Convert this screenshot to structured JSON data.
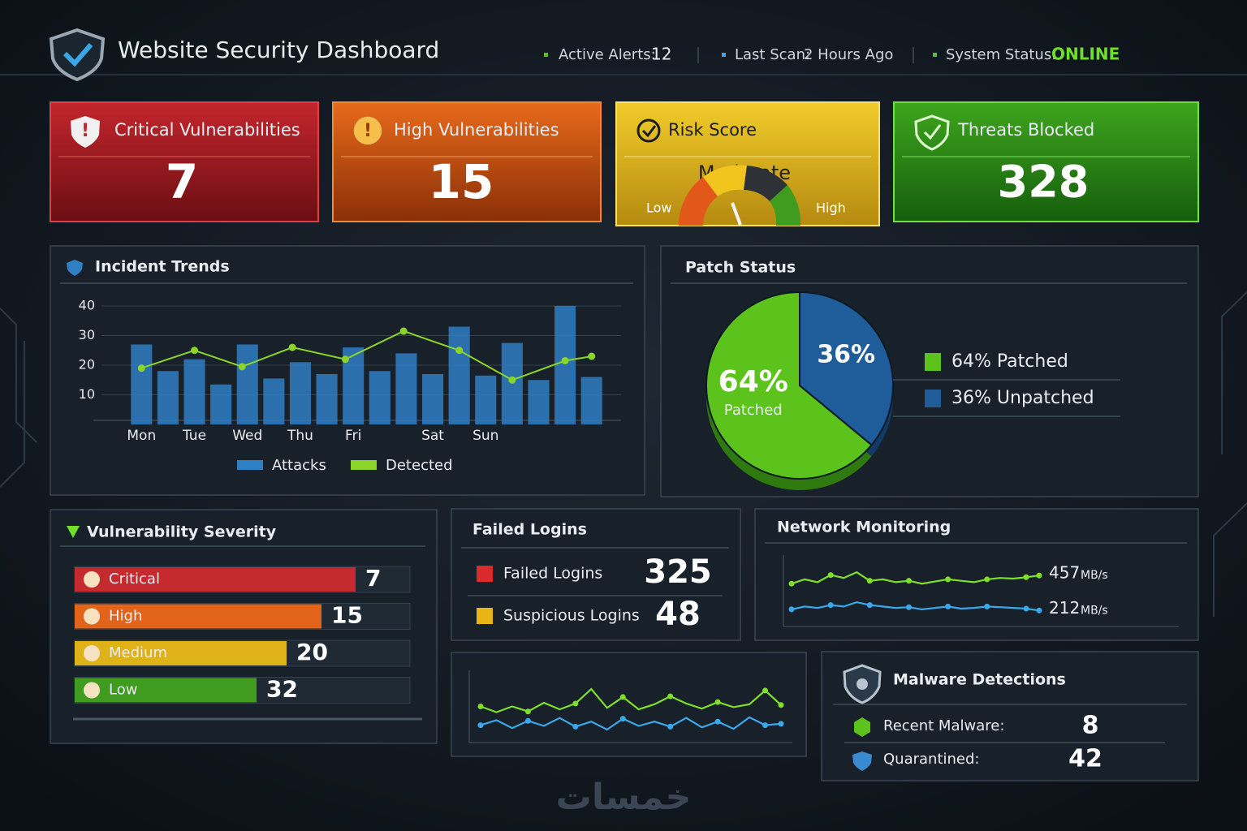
{
  "header": {
    "title": "Website Security Dashboard",
    "alerts_label": "Active Alerts:",
    "alerts_value": 12,
    "scan_label": "Last Scan:",
    "scan_value": "2 Hours Ago",
    "status_label": "System Status:",
    "status_value": "ONLINE"
  },
  "cards": [
    {
      "title": "Critical Vulnerabilities",
      "value": 7
    },
    {
      "title": "High Vulnerabilities",
      "value": 15
    },
    {
      "title": "Threats Blocked",
      "value": 328
    }
  ],
  "risk": {
    "title": "Risk Score",
    "level": "Moderate",
    "low": "Low",
    "high": "High"
  },
  "chart_data": [
    {
      "type": "bar",
      "title": "Incident Trends",
      "categories": [
        "Mon",
        null,
        "Tue",
        null,
        "Wed",
        null,
        "Thu",
        null,
        "Fri",
        null,
        null,
        "Sat",
        null,
        "Sun",
        null,
        null,
        null,
        null
      ],
      "series": [
        {
          "name": "Attacks",
          "color": "#2f7fc4",
          "values": [
            27,
            18,
            22,
            13.5,
            27,
            15.5,
            21,
            17,
            26,
            18,
            24,
            17,
            33,
            16.5,
            27.5,
            15,
            40,
            16
          ]
        },
        {
          "name": "Detected",
          "color": "#8bd42a",
          "x": [
            0,
            2,
            3.8,
            5.7,
            7.7,
            9.9,
            12,
            14,
            16,
            17
          ],
          "values": [
            19,
            25,
            19.5,
            26,
            22,
            31.5,
            25,
            15,
            21.5,
            23
          ]
        }
      ],
      "ylim": [
        0,
        40
      ],
      "yticks": [
        10,
        20,
        30,
        40
      ],
      "grid": true
    },
    {
      "type": "pie",
      "title": "Patch Status",
      "categories": [
        "64% Patched",
        "36% Unpatched"
      ],
      "values": [
        64,
        36
      ],
      "value_labels": [
        "64%",
        "36%"
      ],
      "colors": [
        "#5cc21c",
        "#1f5c9a"
      ],
      "annotation": "Patched"
    },
    {
      "type": "line",
      "title": "Network Monitoring",
      "ylim": [
        100,
        600
      ],
      "series": [
        {
          "color": "#7ee02a",
          "unit": "MB/s",
          "values": [
            400,
            430,
            410,
            460,
            440,
            480,
            420,
            430,
            410,
            420,
            400,
            415,
            430,
            420,
            410,
            430,
            440,
            435,
            445,
            457
          ]
        },
        {
          "color": "#3aa8ec",
          "unit": "MB/s",
          "values": [
            220,
            240,
            230,
            250,
            240,
            270,
            250,
            240,
            230,
            235,
            220,
            230,
            240,
            225,
            230,
            240,
            235,
            230,
            225,
            212
          ]
        }
      ]
    },
    {
      "type": "line",
      "ylim": [
        0,
        10
      ],
      "series": [
        {
          "color": "#7ee02a",
          "values": [
            5,
            4.2,
            5,
            4.3,
            5.5,
            4.6,
            5.4,
            7.4,
            4.8,
            6.3,
            4.6,
            5.3,
            6.4,
            5.4,
            4.7,
            5.6,
            4.9,
            5.3,
            7.2,
            5.2
          ]
        },
        {
          "color": "#3aa8ec",
          "values": [
            2.4,
            3.1,
            2,
            3,
            2.3,
            3.4,
            2.2,
            2.9,
            1.8,
            3.3,
            2.3,
            2.9,
            2.2,
            3.4,
            2.1,
            2.9,
            1.9,
            3.5,
            2.4,
            2.6
          ]
        }
      ]
    }
  ],
  "severity": {
    "title": "Vulnerability Severity",
    "rows": [
      {
        "label": "Critical",
        "value": 7,
        "color": "#c42a2e"
      },
      {
        "label": "High",
        "value": 15,
        "color": "#e2641b"
      },
      {
        "label": "Medium",
        "value": 20,
        "color": "#e0b21a"
      },
      {
        "label": "Low",
        "value": 32,
        "color": "#3f9c1f"
      }
    ]
  },
  "failed_logins": {
    "title": "Failed Logins",
    "rows": [
      {
        "label": "Failed Logins",
        "value": 325,
        "color": "#d92b2b"
      },
      {
        "label": "Suspicious Logins",
        "value": 48,
        "color": "#e8b514"
      }
    ]
  },
  "malware": {
    "title": "Malware Detections",
    "rows": [
      {
        "label": "Recent Malware:",
        "value": 8
      },
      {
        "label": "Quarantined:",
        "value": 42
      }
    ]
  },
  "watermark": "خمسات"
}
